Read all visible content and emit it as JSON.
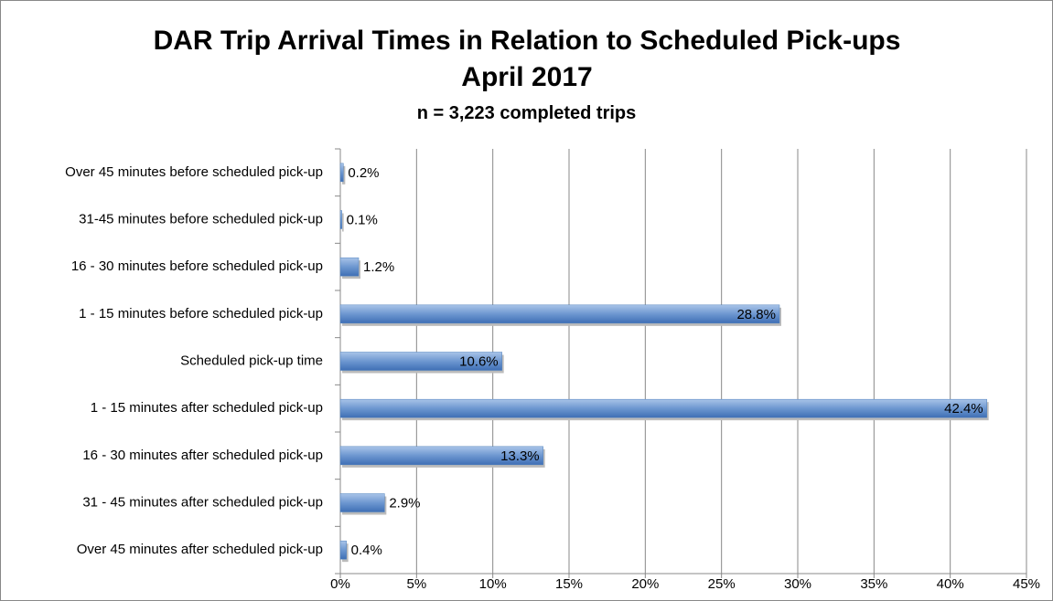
{
  "chart_data": {
    "type": "hbar",
    "title": "DAR Trip Arrival Times in Relation to Scheduled Pick-ups April 2017",
    "subtitle": "n = 3,223 completed trips",
    "categories": [
      "Over 45 minutes before scheduled pick-up",
      "31-45 minutes before scheduled pick-up",
      "16 - 30 minutes before scheduled pick-up",
      "1 - 15 minutes before scheduled pick-up",
      "Scheduled pick-up time",
      "1 - 15 minutes after scheduled pick-up",
      "16 - 30 minutes after scheduled pick-up",
      "31 - 45 minutes after scheduled pick-up",
      "Over 45 minutes after scheduled pick-up"
    ],
    "values": [
      0.2,
      0.1,
      1.2,
      28.8,
      10.6,
      42.4,
      13.3,
      2.9,
      0.4
    ],
    "value_labels": [
      "0.2%",
      "0.1%",
      "1.2%",
      "28.8%",
      "10.6%",
      "42.4%",
      "13.3%",
      "2.9%",
      "0.4%"
    ],
    "color": "#4f81bd",
    "xlim": [
      0,
      45
    ],
    "xticks": [
      {
        "value": 0,
        "label": "0%"
      },
      {
        "value": 5,
        "label": "5%"
      },
      {
        "value": 10,
        "label": "10%"
      },
      {
        "value": 15,
        "label": "15%"
      },
      {
        "value": 20,
        "label": "20%"
      },
      {
        "value": 25,
        "label": "25%"
      },
      {
        "value": 30,
        "label": "30%"
      },
      {
        "value": 35,
        "label": "35%"
      },
      {
        "value": 40,
        "label": "40%"
      },
      {
        "value": 45,
        "label": "45%"
      }
    ],
    "grid": true
  }
}
